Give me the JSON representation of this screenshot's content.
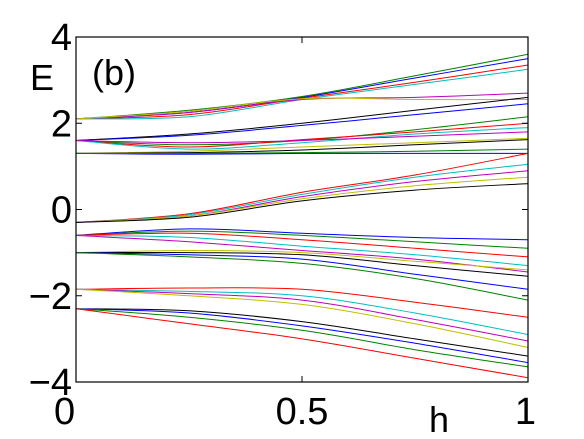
{
  "chart_data": {
    "type": "line",
    "panel_label": "(b)",
    "xlabel": "h",
    "ylabel": "E",
    "xlim": [
      0,
      1
    ],
    "ylim": [
      -4,
      4
    ],
    "x_ticks": [
      0,
      0.5,
      1
    ],
    "x_tick_labels": [
      "0",
      "0.5",
      "1"
    ],
    "y_ticks": [
      -4,
      -2,
      0,
      2,
      4
    ],
    "y_tick_labels": [
      "−4",
      "−2",
      "0",
      "2",
      "4"
    ],
    "grid": false,
    "legend": "none",
    "colors": [
      "#0000ff",
      "#008000",
      "#ff0000",
      "#00bfbf",
      "#bf00bf",
      "#bfbf00",
      "#000000"
    ],
    "x": [
      0,
      0.25,
      0.5,
      0.75,
      1
    ],
    "series": [
      {
        "values": [
          2.1,
          2.25,
          2.6,
          3.05,
          3.5
        ]
      },
      {
        "values": [
          2.1,
          2.3,
          2.62,
          3.1,
          3.6
        ]
      },
      {
        "values": [
          2.1,
          2.2,
          2.58,
          2.95,
          3.35
        ]
      },
      {
        "values": [
          2.1,
          2.15,
          2.55,
          2.9,
          3.25
        ]
      },
      {
        "values": [
          2.1,
          2.25,
          2.55,
          2.6,
          2.7
        ]
      },
      {
        "values": [
          2.1,
          2.28,
          2.57,
          2.55,
          2.55
        ]
      },
      {
        "values": [
          1.6,
          1.75,
          2.0,
          2.3,
          2.6
        ]
      },
      {
        "values": [
          1.6,
          1.72,
          1.95,
          2.2,
          2.45
        ]
      },
      {
        "values": [
          1.6,
          1.5,
          1.6,
          1.85,
          2.15
        ]
      },
      {
        "values": [
          1.6,
          1.45,
          1.62,
          1.8,
          2.0
        ]
      },
      {
        "values": [
          1.6,
          1.4,
          1.55,
          1.75,
          1.9
        ]
      },
      {
        "values": [
          1.6,
          1.55,
          1.6,
          1.7,
          1.8
        ]
      },
      {
        "values": [
          1.3,
          1.35,
          1.45,
          1.55,
          1.65
        ]
      },
      {
        "values": [
          1.3,
          1.32,
          1.38,
          1.5,
          1.62
        ]
      },
      {
        "values": [
          1.3,
          1.28,
          1.3,
          1.3,
          1.3
        ]
      },
      {
        "values": [
          1.3,
          1.3,
          1.32,
          1.35,
          1.4
        ]
      },
      {
        "values": [
          -0.3,
          -0.1,
          0.4,
          0.8,
          1.3
        ]
      },
      {
        "values": [
          -0.3,
          -0.12,
          0.35,
          0.75,
          1.05
        ]
      },
      {
        "values": [
          -0.3,
          -0.15,
          0.3,
          0.65,
          0.9
        ]
      },
      {
        "values": [
          -0.3,
          -0.15,
          0.25,
          0.55,
          0.75
        ]
      },
      {
        "values": [
          -0.3,
          -0.18,
          0.2,
          0.45,
          0.6
        ]
      },
      {
        "values": [
          -0.6,
          -0.45,
          -0.55,
          -0.65,
          -0.7
        ]
      },
      {
        "values": [
          -0.6,
          -0.5,
          -0.6,
          -0.75,
          -0.9
        ]
      },
      {
        "values": [
          -0.6,
          -0.55,
          -0.7,
          -0.9,
          -1.1
        ]
      },
      {
        "values": [
          -0.6,
          -0.65,
          -0.85,
          -1.05,
          -1.3
        ]
      },
      {
        "values": [
          -0.6,
          -0.75,
          -0.95,
          -1.15,
          -1.45
        ]
      },
      {
        "values": [
          -1.0,
          -0.95,
          -1.0,
          -1.2,
          -1.4
        ]
      },
      {
        "values": [
          -1.0,
          -1.0,
          -1.05,
          -1.3,
          -1.55
        ]
      },
      {
        "values": [
          -1.0,
          -1.05,
          -1.15,
          -1.5,
          -1.85
        ]
      },
      {
        "values": [
          -1.0,
          -1.1,
          -1.25,
          -1.6,
          -2.1
        ]
      },
      {
        "values": [
          -1.85,
          -1.82,
          -1.85,
          -2.15,
          -2.5
        ]
      },
      {
        "values": [
          -1.85,
          -1.9,
          -2.0,
          -2.4,
          -2.9
        ]
      },
      {
        "values": [
          -1.85,
          -1.95,
          -2.1,
          -2.55,
          -3.05
        ]
      },
      {
        "values": [
          -1.85,
          -2.0,
          -2.2,
          -2.65,
          -3.2
        ]
      },
      {
        "values": [
          -2.3,
          -2.35,
          -2.6,
          -3.0,
          -3.4
        ]
      },
      {
        "values": [
          -2.3,
          -2.4,
          -2.7,
          -3.1,
          -3.55
        ]
      },
      {
        "values": [
          -2.3,
          -2.5,
          -2.8,
          -3.25,
          -3.65
        ]
      },
      {
        "values": [
          -2.3,
          -2.65,
          -3.0,
          -3.45,
          -3.9
        ]
      }
    ]
  }
}
